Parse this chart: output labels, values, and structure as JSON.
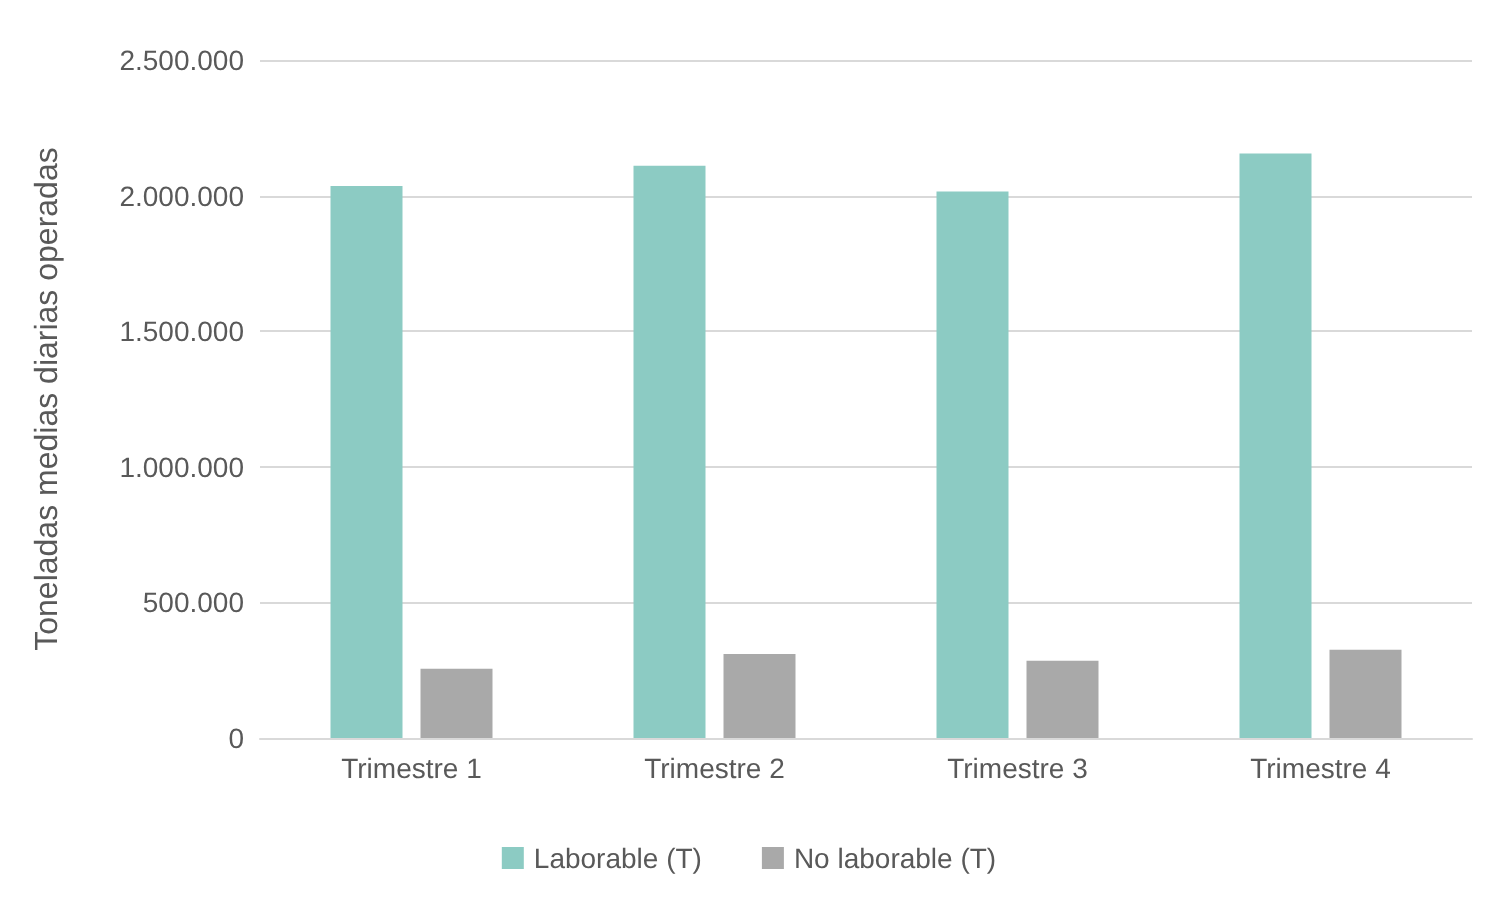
{
  "chart_data": {
    "type": "bar",
    "ylabel": "Toneladas medias diarias operadas",
    "categories": [
      "Trimestre 1",
      "Trimestre 2",
      "Trimestre 3",
      "Trimestre 4"
    ],
    "series": [
      {
        "name": "Laborable (T)",
        "color": "#8ccbc3",
        "values": [
          2035000,
          2110000,
          2015000,
          2155000
        ]
      },
      {
        "name": "No laborable (T)",
        "color": "#a9a9a9",
        "values": [
          255000,
          310000,
          285000,
          325000
        ]
      }
    ],
    "ylim": [
      0,
      2500000
    ],
    "yticks": [
      0,
      {
        "value": 500000,
        "label": "500.000"
      },
      {
        "value": 1000000,
        "label": "1.000.000"
      },
      {
        "value": 1500000,
        "label": "1.500.000"
      },
      {
        "value": 2000000,
        "label": "2.000.000"
      },
      {
        "value": 2500000,
        "label": "2.500.000"
      }
    ],
    "grid": "y",
    "legend": "bottom"
  }
}
